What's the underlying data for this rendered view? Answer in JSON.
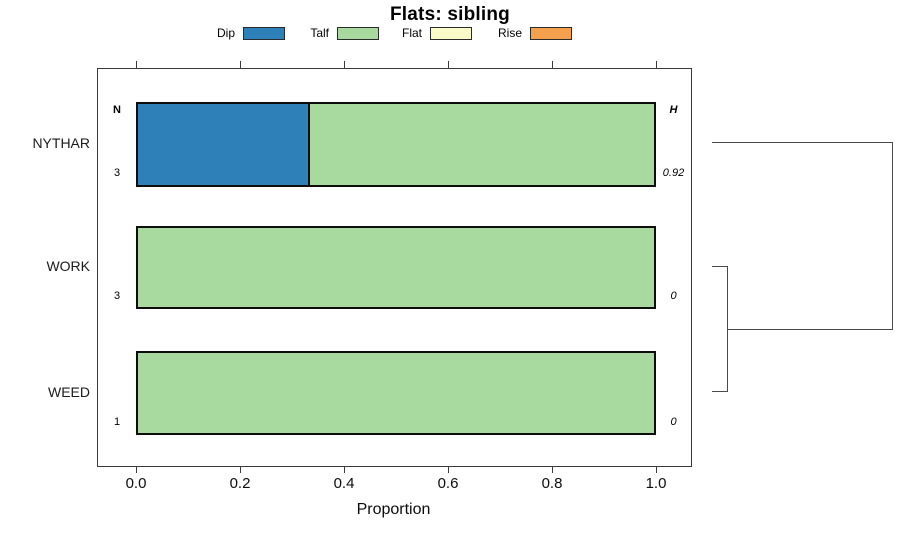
{
  "chart_data": {
    "type": "bar",
    "orientation": "horizontal",
    "stacked": true,
    "title": "Flats: sibling",
    "xlabel": "Proportion",
    "xlim": [
      0,
      1
    ],
    "x_ticks": [
      0.0,
      0.2,
      0.4,
      0.6,
      0.8,
      1.0
    ],
    "x_tick_labels": [
      "0.0",
      "0.2",
      "0.4",
      "0.6",
      "0.8",
      "1.0"
    ],
    "categories": [
      "NYTHAR",
      "WORK",
      "WEED"
    ],
    "series": [
      {
        "name": "Dip",
        "color": "#2E80B9",
        "values": [
          0.333,
          0,
          0
        ]
      },
      {
        "name": "Talf",
        "color": "#A8DAA0",
        "values": [
          0.667,
          1,
          1
        ]
      },
      {
        "name": "Flat",
        "color": "#FAFAC8",
        "values": [
          0,
          0,
          0
        ]
      },
      {
        "name": "Rise",
        "color": "#F5A04D",
        "values": [
          0,
          0,
          0
        ]
      }
    ],
    "row_annotations": {
      "n_header": "N",
      "h_header": "H",
      "n_values": [
        "3",
        "3",
        "1"
      ],
      "h_values": [
        "0.92",
        "0",
        "0"
      ]
    },
    "legend_position": "top",
    "grid": false,
    "dendrogram": {
      "side": "right",
      "merges": [
        [
          "WORK",
          "WEED"
        ],
        [
          "NYTHAR",
          [
            "WORK",
            "WEED"
          ]
        ]
      ]
    }
  }
}
